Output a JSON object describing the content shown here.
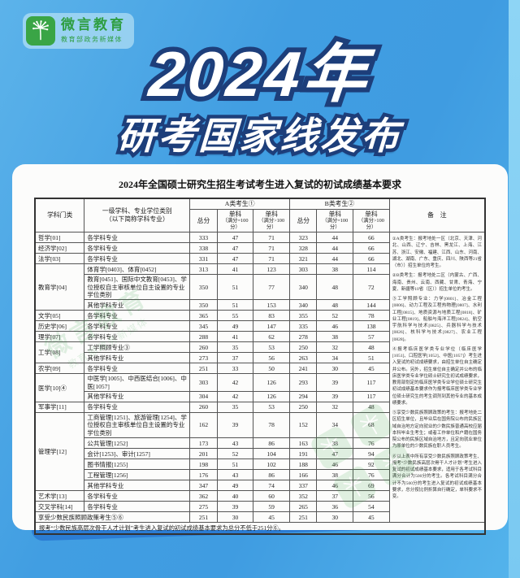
{
  "logo": {
    "name": "微言教育",
    "sub": "教育部政务新媒体"
  },
  "title": {
    "line1": "2024年",
    "line2": "研考国家线发布"
  },
  "table": {
    "caption": "2024年全国硕士研究生招生考试考生进入复试的初试成绩基本要求",
    "headers": {
      "category": "学科门类",
      "major_line1": "一级学科、专业学位类别",
      "major_line2": "（以下简称学科专业）",
      "groupA": "A类考生①",
      "groupB": "B类考生②",
      "total": "总分",
      "sub": "单科",
      "sub_eq": "（满分=100分）",
      "sub_gt": "（满分>100分）",
      "note": "备　注"
    },
    "groups": [
      {
        "category": "哲学[01]",
        "rows": [
          {
            "major": "各学科专业",
            "values": [
              333,
              47,
              71,
              323,
              44,
              66
            ]
          }
        ]
      },
      {
        "category": "经济学[02]",
        "rows": [
          {
            "major": "各学科专业",
            "values": [
              338,
              47,
              71,
              328,
              44,
              66
            ]
          }
        ]
      },
      {
        "category": "法学[03]",
        "rows": [
          {
            "major": "各学科专业",
            "values": [
              331,
              47,
              71,
              321,
              44,
              66
            ]
          }
        ]
      },
      {
        "category": "教育学[04]",
        "rows": [
          {
            "major": "体育学[0403]、体育[0452]",
            "values": [
              313,
              41,
              123,
              303,
              38,
              114
            ]
          },
          {
            "major": "教育[0451]、国际中文教育[0453]、学位授权自主审核单位自主设置的专业学位类别",
            "values": [
              350,
              51,
              77,
              340,
              48,
              72
            ]
          },
          {
            "major": "其他学科专业",
            "values": [
              350,
              51,
              153,
              340,
              48,
              144
            ]
          }
        ]
      },
      {
        "category": "文学[05]",
        "rows": [
          {
            "major": "各学科专业",
            "values": [
              365,
              55,
              83,
              355,
              52,
              78
            ]
          }
        ]
      },
      {
        "category": "历史学[06]",
        "rows": [
          {
            "major": "各学科专业",
            "values": [
              345,
              49,
              147,
              335,
              46,
              138
            ]
          }
        ]
      },
      {
        "category": "理学[07]",
        "rows": [
          {
            "major": "各学科专业",
            "values": [
              288,
              41,
              62,
              278,
              38,
              57
            ]
          }
        ]
      },
      {
        "category": "工学[08]",
        "rows": [
          {
            "major": "工学照顾专业③",
            "values": [
              260,
              35,
              53,
              250,
              32,
              48
            ]
          },
          {
            "major": "其他学科专业",
            "values": [
              273,
              37,
              56,
              263,
              34,
              51
            ]
          }
        ]
      },
      {
        "category": "农学[09]",
        "rows": [
          {
            "major": "各学科专业",
            "values": [
              251,
              33,
              50,
              241,
              30,
              45
            ]
          }
        ]
      },
      {
        "category": "医学[10]④",
        "rows": [
          {
            "major": "中医学[1005]、中西医结合[1006]、中医[1057]",
            "values": [
              303,
              42,
              126,
              293,
              39,
              117
            ]
          },
          {
            "major": "其他学科专业",
            "values": [
              304,
              42,
              126,
              294,
              39,
              117
            ]
          }
        ]
      },
      {
        "category": "军事学[11]",
        "rows": [
          {
            "major": "各学科专业",
            "values": [
              260,
              35,
              53,
              250,
              32,
              48
            ]
          }
        ]
      },
      {
        "category": "管理学[12]",
        "rows": [
          {
            "major": "工商管理[1251]、旅游管理[1254]、学位授权自主审核单位自主设置的专业学位类别",
            "values": [
              162,
              39,
              78,
              152,
              34,
              68
            ]
          },
          {
            "major": "公共管理[1252]",
            "values": [
              173,
              43,
              86,
              163,
              38,
              76
            ]
          },
          {
            "major": "会计[1253]、审计[1257]",
            "values": [
              201,
              52,
              104,
              191,
              47,
              94
            ]
          },
          {
            "major": "图书情报[1255]",
            "values": [
              198,
              51,
              102,
              188,
              46,
              92
            ]
          },
          {
            "major": "工程管理[1256]",
            "values": [
              176,
              43,
              86,
              166,
              38,
              76
            ]
          },
          {
            "major": "其他学科专业",
            "values": [
              347,
              49,
              74,
              337,
              46,
              69
            ]
          }
        ]
      },
      {
        "category": "艺术学[13]",
        "rows": [
          {
            "major": "各学科专业",
            "values": [
              362,
              40,
              60,
              352,
              37,
              56
            ]
          }
        ]
      },
      {
        "category": "交叉学科[14]",
        "rows": [
          {
            "major": "各学科专业",
            "values": [
              275,
              39,
              59,
              265,
              36,
              54
            ]
          }
        ]
      }
    ],
    "special_row": {
      "label": "享受少数民族照顾政策考生⑤⑥",
      "values": [
        251,
        30,
        45,
        251,
        30,
        45
      ]
    },
    "footer": "报考“少数民族高层次骨干人才计划”考生进入复试的初试成绩基本要求为总分不低于251分⑥。",
    "notes": [
      "①A类考生：报考地处一区（北京、天津、河北、山西、辽宁、吉林、黑龙江、上海、江苏、浙江、安徽、福建、江西、山东、河南、湖北、湖南、广东、重庆、四川、陕西等21省（市））招生单位的考生。",
      "②B类考生：报考地处二区（内蒙古、广西、海南、贵州、云南、西藏、甘肃、青海、宁夏、新疆等10省（区））招生单位的考生。",
      "③工学照顾专业：力学[0801]、冶金工程[0806]、动力工程及工程热物理[0807]、水利工程[0815]、地质资源与地质工程[0818]、矿业工程[0819]、船舶与海洋工程[0824]、航空宇航科学与技术[0825]、兵器科学与技术[0826]、核科学与技术[0827]、农业工程[0828]。",
      "④报考临床医学类专业学位（临床医学[1051]、口腔医学[1052]、中医[1057]）考生进入复试的初试成绩要求，由招生单位自主确定并公布。另外，招生单位自主确定并公布的临床医学类专业学位硕士研究生初试成绩要求，教育部划定的临床医学类专业学位硕士研究生初试成绩基本要求作为报考临床医学类专业学位硕士研究生的考生调剂到其他专业的基本成绩要求。",
      "⑤享受少数民族照顾政策的考生：报考地处二区招生单位，且毕业后在国务院公布的民族区域自治地方定向就业的少数民族普通高校应届本科毕业生考生；或者工作单位和户籍在国务院公布的民族区域自治地方，且定向就业单位为原单位的少数民族在职人员考生。",
      "⑥以上表中所有享受少数民族照顾政策考生、报考“少数民族高层次骨干人才计划”考生进入复试的初试成绩基本要求，适用于各考试科目满分合计为500分的考生。各考试科目满分合计不为500分的考生进入复试的初试成绩基本要求，总分按比例折算自行确定，单科要求不变。"
    ]
  },
  "colors": {
    "background_blue": "#3f9ce1",
    "outline_navy": "#1d3e7a",
    "logo_green": "#3aa546",
    "card_shadow_blue": "#2b7cd3"
  }
}
